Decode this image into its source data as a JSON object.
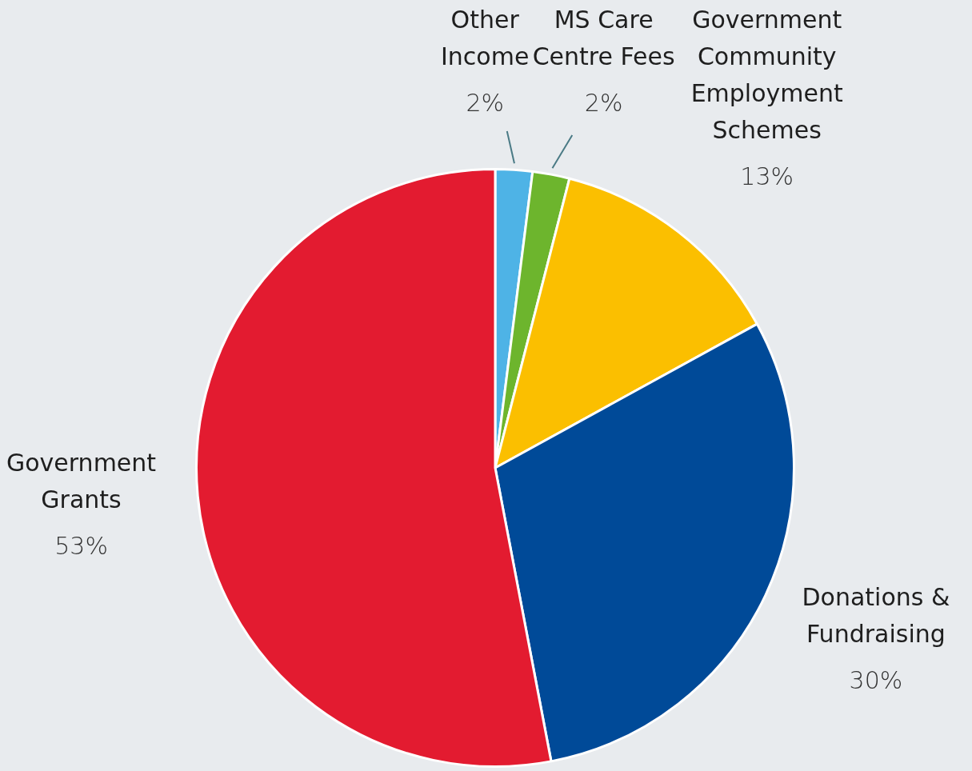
{
  "chart_data": {
    "type": "pie",
    "categories": [
      "Other Income",
      "MS Care Centre Fees",
      "Government Community Employment Schemes",
      "Donations & Fundraising",
      "Government Grants"
    ],
    "values": [
      2,
      2,
      13,
      30,
      53
    ],
    "colors": [
      "#4eb3e6",
      "#6db52d",
      "#fbbf00",
      "#004a98",
      "#e31b30"
    ],
    "value_labels": [
      "2%",
      "2%",
      "13%",
      "30%",
      "53%"
    ],
    "legend": false
  }
}
